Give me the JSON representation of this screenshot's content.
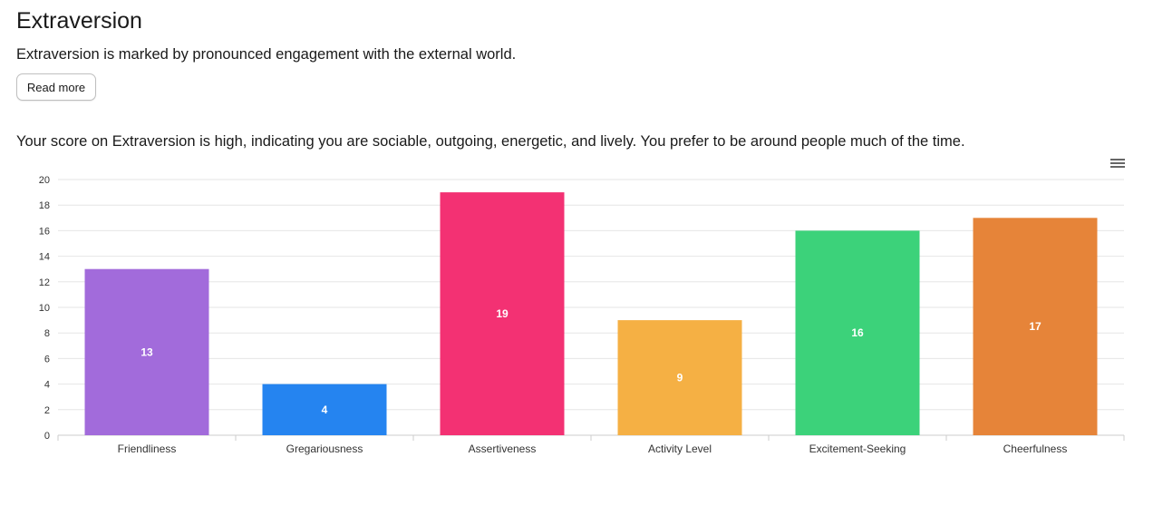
{
  "header": {
    "title": "Extraversion",
    "description": "Extraversion is marked by pronounced engagement with the external world.",
    "read_more_label": "Read more"
  },
  "score_text": "Your score on Extraversion is high, indicating you are sociable, outgoing, energetic, and lively. You prefer to be around people much of the time.",
  "menu_icon": "hamburger-menu-icon",
  "chart_data": {
    "type": "bar",
    "categories": [
      "Friendliness",
      "Gregariousness",
      "Assertiveness",
      "Activity Level",
      "Excitement-Seeking",
      "Cheerfulness"
    ],
    "values": [
      13,
      4,
      19,
      9,
      16,
      17
    ],
    "colors": [
      "#a26bdb",
      "#2584f0",
      "#f33173",
      "#f5b044",
      "#3cd27a",
      "#e68439"
    ],
    "ylim": [
      0,
      20
    ],
    "yticks": [
      0,
      2,
      4,
      6,
      8,
      10,
      12,
      14,
      16,
      18,
      20
    ],
    "grid": true,
    "data_labels": true
  }
}
